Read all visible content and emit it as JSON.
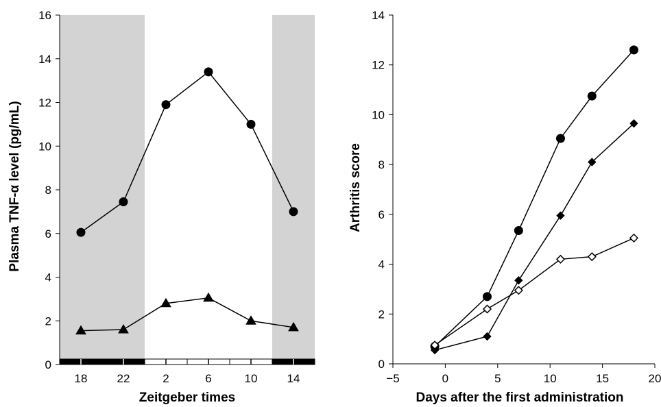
{
  "chart_data": [
    {
      "type": "line",
      "title": "",
      "xlabel": "Zeitgeber times",
      "ylabel": "Plasma TNF-α level (pg/mL)",
      "categories": [
        "18",
        "22",
        "2",
        "6",
        "10",
        "14"
      ],
      "ylim": [
        0,
        16
      ],
      "yticks": [
        "0",
        "2",
        "4",
        "6",
        "8",
        "10",
        "12",
        "14",
        "16"
      ],
      "shaded_dark_periods": [
        [
          0,
          1
        ],
        [
          5,
          5
        ]
      ],
      "light_dark_bar": [
        "dark",
        "dark",
        "light",
        "light",
        "light",
        "dark"
      ],
      "grid": false,
      "series": [
        {
          "marker": "filled-circle",
          "values": [
            6.05,
            7.45,
            11.9,
            13.4,
            11.0,
            7.0
          ]
        },
        {
          "marker": "filled-triangle",
          "values": [
            1.55,
            1.6,
            2.8,
            3.05,
            2.0,
            1.7
          ]
        }
      ]
    },
    {
      "type": "line",
      "title": "",
      "xlabel": "Days after the first administration",
      "ylabel": "Arthritis score",
      "xlim": [
        -5,
        20
      ],
      "ylim": [
        0,
        14
      ],
      "xticks": [
        "−5",
        "0",
        "5",
        "10",
        "15",
        "20"
      ],
      "yticks": [
        "0",
        "2",
        "4",
        "6",
        "8",
        "10",
        "12",
        "14"
      ],
      "grid": false,
      "series": [
        {
          "marker": "filled-circle",
          "x": [
            -1,
            4,
            7,
            11,
            14,
            18
          ],
          "y": [
            0.7,
            2.7,
            5.35,
            9.05,
            10.75,
            12.6
          ]
        },
        {
          "marker": "filled-diamond",
          "x": [
            -1,
            4,
            7,
            11,
            14,
            18
          ],
          "y": [
            0.55,
            1.1,
            3.35,
            5.95,
            8.1,
            9.65
          ]
        },
        {
          "marker": "open-diamond",
          "x": [
            -1,
            4,
            7,
            11,
            14,
            18
          ],
          "y": [
            0.75,
            2.2,
            2.95,
            4.2,
            4.3,
            5.05
          ]
        }
      ]
    }
  ]
}
